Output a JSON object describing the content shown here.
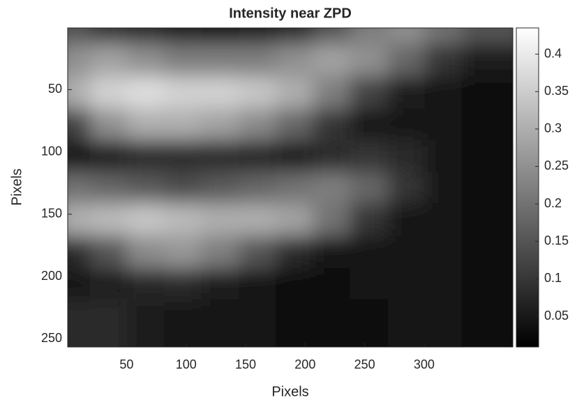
{
  "chart_data": {
    "type": "heatmap",
    "title": "Intensity near ZPD",
    "xlabel": "Pixels",
    "ylabel": "Pixels",
    "colormap": "gray",
    "x": [
      16,
      47,
      78,
      109,
      140,
      172,
      203,
      234,
      265,
      297,
      328,
      359
    ],
    "y": [
      13,
      38,
      64,
      90,
      115,
      141,
      166,
      192,
      218,
      243
    ],
    "z": [
      [
        0.15,
        0.1,
        0.08,
        0.06,
        0.05,
        0.06,
        0.08,
        0.15,
        0.22,
        0.25,
        0.2,
        0.15
      ],
      [
        0.25,
        0.28,
        0.25,
        0.22,
        0.22,
        0.22,
        0.25,
        0.28,
        0.25,
        0.18,
        0.1,
        0.06
      ],
      [
        0.3,
        0.36,
        0.38,
        0.36,
        0.36,
        0.34,
        0.3,
        0.22,
        0.12,
        0.06,
        0.04,
        0.03
      ],
      [
        0.12,
        0.25,
        0.3,
        0.3,
        0.28,
        0.24,
        0.18,
        0.1,
        0.05,
        0.04,
        0.04,
        0.03
      ],
      [
        0.05,
        0.06,
        0.08,
        0.08,
        0.08,
        0.07,
        0.06,
        0.08,
        0.1,
        0.08,
        0.05,
        0.03
      ],
      [
        0.2,
        0.18,
        0.16,
        0.14,
        0.16,
        0.18,
        0.2,
        0.22,
        0.18,
        0.1,
        0.05,
        0.03
      ],
      [
        0.3,
        0.32,
        0.34,
        0.32,
        0.3,
        0.3,
        0.28,
        0.2,
        0.1,
        0.05,
        0.04,
        0.03
      ],
      [
        0.08,
        0.15,
        0.24,
        0.26,
        0.22,
        0.15,
        0.08,
        0.05,
        0.04,
        0.04,
        0.04,
        0.03
      ],
      [
        0.05,
        0.06,
        0.07,
        0.08,
        0.06,
        0.04,
        0.03,
        0.03,
        0.04,
        0.05,
        0.04,
        0.03
      ],
      [
        0.08,
        0.08,
        0.06,
        0.05,
        0.04,
        0.04,
        0.03,
        0.03,
        0.03,
        0.04,
        0.04,
        0.03
      ]
    ],
    "xlim": [
      0.5,
      374.5
    ],
    "ylim": [
      0.5,
      256.5
    ],
    "y_reversed": true,
    "xticks": [
      50,
      100,
      150,
      200,
      250,
      300
    ],
    "yticks": [
      50,
      100,
      150,
      200,
      250
    ],
    "clim": [
      0.009,
      0.435
    ],
    "cticks": [
      0.05,
      0.1,
      0.15,
      0.2,
      0.25,
      0.3,
      0.35,
      0.4
    ]
  }
}
